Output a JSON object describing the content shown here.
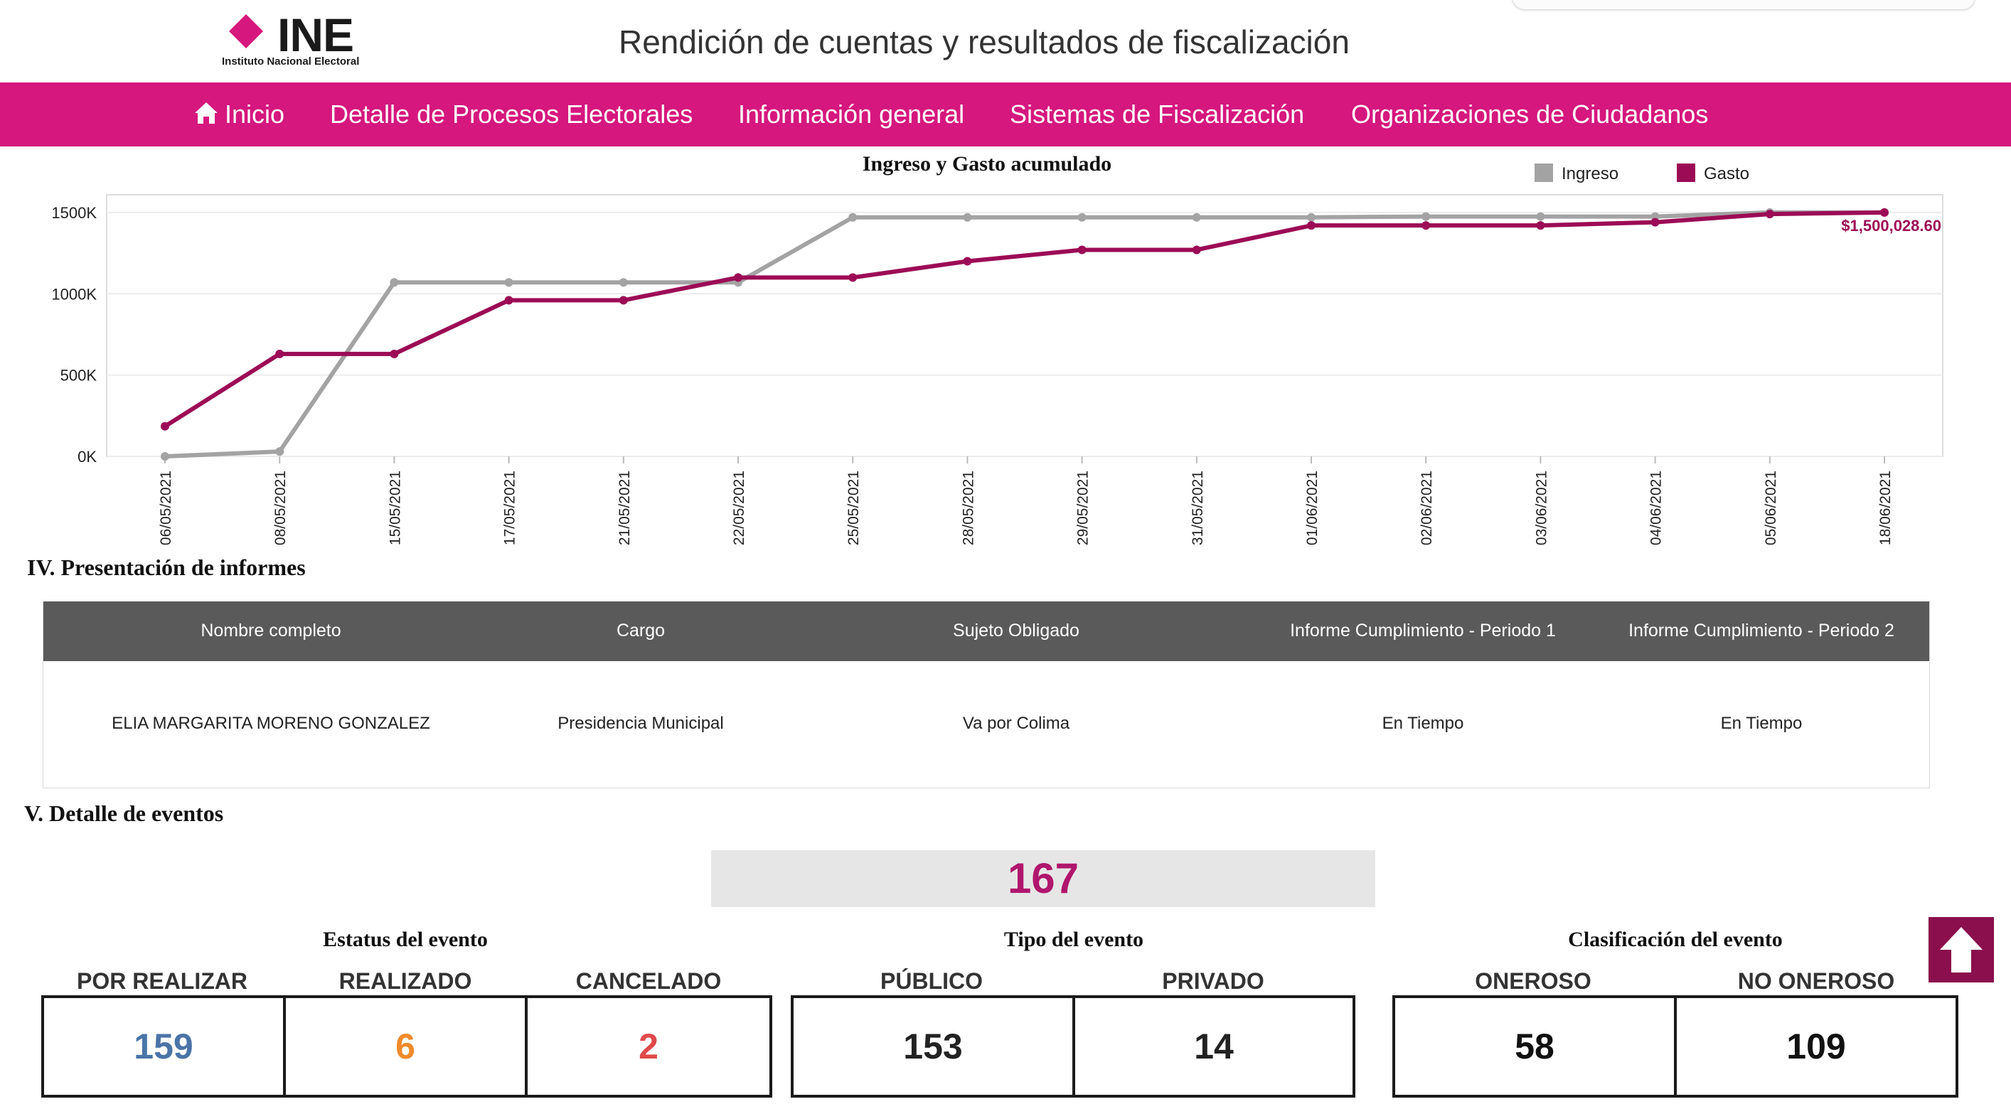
{
  "header": {
    "logo_word": "INE",
    "logo_sub": "Instituto Nacional Electoral",
    "title": "Rendición de cuentas y resultados de fiscalización"
  },
  "nav": {
    "items": [
      {
        "label": "Inicio",
        "icon": "home-icon"
      },
      {
        "label": "Detalle de Procesos Electorales"
      },
      {
        "label": "Información general"
      },
      {
        "label": "Sistemas de Fiscalización"
      },
      {
        "label": "Organizaciones de Ciudadanos"
      }
    ]
  },
  "colors": {
    "brand": "#d5177e",
    "gasto": "#9c0b55",
    "ingreso": "#a3a3a3",
    "por_realizar": "#4a74a8",
    "realizado": "#f08a2a",
    "cancelado": "#e0494a"
  },
  "chart_data": {
    "type": "line",
    "title": "Ingreso y Gasto acumulado",
    "categories": [
      "06/05/2021",
      "08/05/2021",
      "15/05/2021",
      "17/05/2021",
      "21/05/2021",
      "22/05/2021",
      "25/05/2021",
      "28/05/2021",
      "29/05/2021",
      "31/05/2021",
      "01/06/2021",
      "02/06/2021",
      "03/06/2021",
      "04/06/2021",
      "05/06/2021",
      "18/06/2021"
    ],
    "y_tick_labels": [
      "0K",
      "500K",
      "1000K",
      "1500K"
    ],
    "y_ticks": [
      0,
      500000,
      1000000,
      1500000
    ],
    "ylim": [
      0,
      1600000
    ],
    "series": [
      {
        "name": "Ingreso",
        "color": "#a3a3a3",
        "values": [
          0,
          30000,
          1070000,
          1070000,
          1070000,
          1070000,
          1470000,
          1470000,
          1470000,
          1470000,
          1470000,
          1475000,
          1475000,
          1475000,
          1500000,
          1500000
        ]
      },
      {
        "name": "Gasto",
        "color": "#9c0b55",
        "values": [
          185000,
          630000,
          630000,
          960000,
          960000,
          1100000,
          1100000,
          1200000,
          1270000,
          1270000,
          1420000,
          1420000,
          1420000,
          1440000,
          1490000,
          1500028.6
        ]
      }
    ],
    "last_label": "$1,500,028.60",
    "legend_position": "top-right",
    "grid": true
  },
  "section4": {
    "title": "IV. Presentación de informes",
    "headers": [
      "Nombre completo",
      "Cargo",
      "Sujeto Obligado",
      "Informe Cumplimiento - Periodo 1",
      "Informe Cumplimiento - Periodo 2"
    ],
    "rows": [
      [
        "ELIA MARGARITA MORENO GONZALEZ",
        "Presidencia Municipal",
        "Va por Colima",
        "En Tiempo",
        "En Tiempo"
      ]
    ]
  },
  "section5": {
    "title": "V. Detalle de eventos",
    "total": "167",
    "estatus": {
      "title": "Estatus del evento",
      "items": [
        {
          "label": "POR REALIZAR",
          "value": "159"
        },
        {
          "label": "REALIZADO",
          "value": "6"
        },
        {
          "label": "CANCELADO",
          "value": "2"
        }
      ]
    },
    "tipo": {
      "title": "Tipo del evento",
      "items": [
        {
          "label": "PÚBLICO",
          "value": "153"
        },
        {
          "label": "PRIVADO",
          "value": "14"
        }
      ]
    },
    "clasificacion": {
      "title": "Clasificación del evento",
      "items": [
        {
          "label": "ONEROSO",
          "value": "58"
        },
        {
          "label": "NO ONEROSO",
          "value": "109"
        }
      ]
    }
  }
}
